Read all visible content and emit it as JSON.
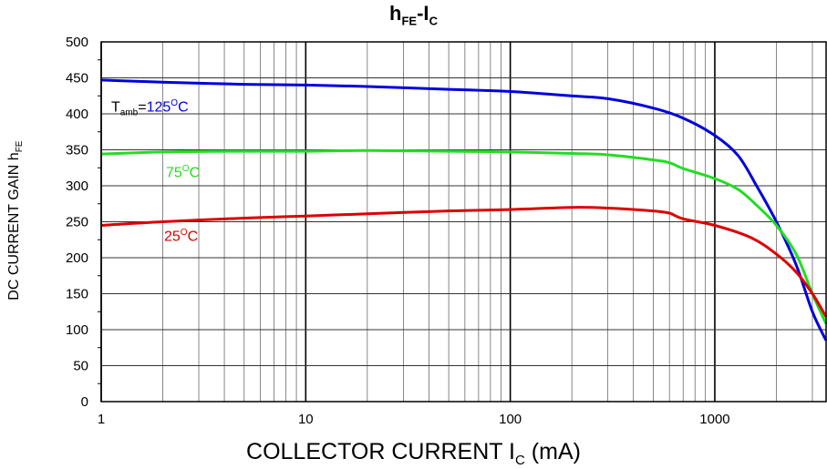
{
  "chart_data": {
    "type": "line",
    "title": {
      "main": "h",
      "sub": "FE",
      "dash": "-I",
      "sub2": "C"
    },
    "xlabel": {
      "main": "COLLECTOR CURRENT I",
      "sub": "C",
      "unit": " (mA)"
    },
    "ylabel": {
      "main": "DC CURRENT GAIN h",
      "sub": "FE"
    },
    "x_scale": "log",
    "xlim": [
      1,
      3500
    ],
    "ylim": [
      0,
      500
    ],
    "x_ticks": [
      "1",
      "10",
      "100",
      "1000"
    ],
    "y_ticks": [
      "0",
      "50",
      "100",
      "150",
      "200",
      "250",
      "300",
      "350",
      "400",
      "450",
      "500"
    ],
    "grid": true,
    "series": [
      {
        "name": "125°C",
        "label": {
          "prefix": "T",
          "prefix_sub": "amb",
          "eq": "=",
          "value": "125",
          "degree": "O",
          "unit": "C"
        },
        "color": "#0000dd",
        "points": [
          [
            1,
            447
          ],
          [
            2,
            444
          ],
          [
            5,
            441
          ],
          [
            10,
            440
          ],
          [
            20,
            438
          ],
          [
            50,
            434
          ],
          [
            100,
            431
          ],
          [
            200,
            425
          ],
          [
            300,
            421
          ],
          [
            500,
            408
          ],
          [
            700,
            394
          ],
          [
            1000,
            370
          ],
          [
            1300,
            342
          ],
          [
            1600,
            300
          ],
          [
            2000,
            250
          ],
          [
            2500,
            190
          ],
          [
            3000,
            125
          ],
          [
            3500,
            85
          ]
        ]
      },
      {
        "name": "75°C",
        "label": {
          "value": "75",
          "degree": "O",
          "unit": "C"
        },
        "color": "#22dd22",
        "points": [
          [
            1,
            344
          ],
          [
            2,
            347
          ],
          [
            5,
            348
          ],
          [
            10,
            348
          ],
          [
            20,
            349
          ],
          [
            50,
            348
          ],
          [
            100,
            347
          ],
          [
            200,
            345
          ],
          [
            300,
            343
          ],
          [
            500,
            336
          ],
          [
            600,
            332
          ],
          [
            700,
            324
          ],
          [
            1000,
            310
          ],
          [
            1300,
            295
          ],
          [
            1600,
            273
          ],
          [
            2000,
            245
          ],
          [
            2500,
            205
          ],
          [
            3000,
            150
          ],
          [
            3500,
            108
          ]
        ]
      },
      {
        "name": "25°C",
        "label": {
          "value": "25",
          "degree": "O",
          "unit": "C"
        },
        "color": "#dd0000",
        "points": [
          [
            1,
            245
          ],
          [
            2,
            250
          ],
          [
            5,
            255
          ],
          [
            10,
            258
          ],
          [
            20,
            261
          ],
          [
            50,
            265
          ],
          [
            100,
            267
          ],
          [
            200,
            270
          ],
          [
            300,
            269
          ],
          [
            500,
            265
          ],
          [
            600,
            262
          ],
          [
            700,
            254
          ],
          [
            1000,
            245
          ],
          [
            1500,
            228
          ],
          [
            2000,
            205
          ],
          [
            2500,
            180
          ],
          [
            3000,
            150
          ],
          [
            3500,
            118
          ]
        ]
      }
    ]
  }
}
